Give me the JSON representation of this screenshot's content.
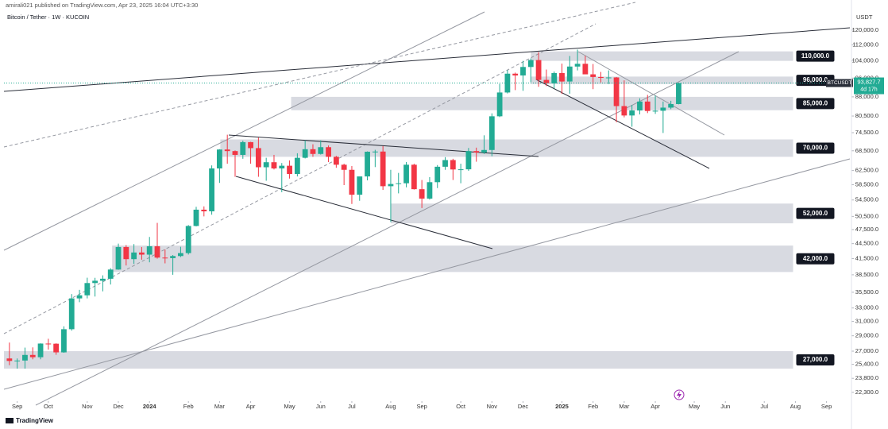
{
  "header": {
    "published": "amirali021 published on TradingView.com, Apr 23, 2025 16:04 UTC+3:30",
    "symbol": "Bitcoin / Tether · 1W · KUCOIN",
    "brand": "TradingView"
  },
  "chart_data": {
    "type": "candlestick",
    "log_scale": true,
    "y_unit": "USDT",
    "colors": {
      "up": "#22ab94",
      "down": "#f23645",
      "zone": "#d1d4dc"
    },
    "open": [
      26100,
      25800,
      25850,
      26530,
      26250,
      27970,
      27950,
      26850,
      29900,
      34500,
      35000,
      37050,
      37450,
      37800,
      39450,
      43800,
      41400,
      42700,
      42280,
      43950,
      41700,
      41600,
      42000,
      42580,
      48300,
      52100,
      51700,
      63100,
      68900,
      68400,
      67200,
      71300,
      69350,
      63450,
      64950,
      63100,
      63900,
      61500,
      66300,
      69000,
      67500,
      69650,
      66600,
      64200,
      62700,
      55850,
      60800,
      68200,
      68250,
      58100,
      58700,
      58900,
      64200,
      57300,
      54850,
      59200,
      63600,
      65600,
      62800,
      62850,
      68400,
      67950,
      68750,
      80400,
      89800,
      98000,
      97200,
      101100,
      104400,
      95200,
      93700,
      98300,
      94500,
      101300,
      102600,
      97700,
      96500,
      96100,
      96300,
      84300,
      80700,
      82600,
      86100,
      82400,
      82500,
      83700,
      85100
    ],
    "high": [
      28100,
      26100,
      27450,
      27480,
      28000,
      28600,
      28000,
      30300,
      35200,
      35900,
      37980,
      37960,
      38400,
      39700,
      44500,
      44200,
      44400,
      43800,
      45900,
      49000,
      43300,
      42200,
      43850,
      48500,
      52800,
      52900,
      64000,
      69000,
      73800,
      68600,
      71800,
      71400,
      72800,
      66300,
      67200,
      64700,
      65500,
      67700,
      71900,
      70600,
      71900,
      70200,
      66900,
      64500,
      63800,
      60000,
      68300,
      68800,
      70000,
      62700,
      61800,
      65000,
      64500,
      59800,
      60600,
      64100,
      66500,
      66000,
      64500,
      69400,
      69500,
      73600,
      81500,
      93500,
      99600,
      98500,
      104000,
      105200,
      108300,
      99900,
      99000,
      102700,
      106400,
      109600,
      106500,
      102500,
      98800,
      99500,
      96500,
      95000,
      84700,
      87400,
      88800,
      88500,
      86100,
      86400,
      94000
    ],
    "low": [
      25300,
      24900,
      24900,
      26000,
      26000,
      27200,
      26550,
      26800,
      29700,
      33900,
      34500,
      34800,
      35650,
      36800,
      39400,
      40200,
      40500,
      41300,
      40800,
      41500,
      40600,
      38500,
      41800,
      42300,
      48200,
      50500,
      50900,
      59000,
      64500,
      60700,
      66000,
      64500,
      60700,
      59600,
      62800,
      56500,
      60200,
      60800,
      66100,
      66600,
      67300,
      65000,
      63300,
      58400,
      53500,
      54300,
      59700,
      63500,
      57100,
      49200,
      56200,
      57800,
      57200,
      52500,
      54600,
      57600,
      62700,
      59800,
      58900,
      62400,
      65100,
      67500,
      66800,
      80100,
      89400,
      90800,
      90500,
      94200,
      92200,
      92500,
      91500,
      89200,
      89300,
      99500,
      97800,
      91200,
      94100,
      93400,
      78200,
      80000,
      76600,
      81100,
      81600,
      81300,
      74400,
      83100,
      85000
    ],
    "close": [
      25800,
      25850,
      26530,
      26250,
      27970,
      27950,
      26850,
      29900,
      34500,
      35000,
      37050,
      37450,
      37800,
      39450,
      43800,
      41400,
      42700,
      42280,
      43950,
      41700,
      41600,
      42000,
      42580,
      48300,
      52100,
      51700,
      63100,
      68900,
      68400,
      67200,
      71300,
      69350,
      63450,
      64950,
      63100,
      63900,
      61500,
      66300,
      69000,
      67500,
      69650,
      66600,
      64200,
      62700,
      55850,
      60800,
      68200,
      68250,
      58100,
      58700,
      58900,
      64200,
      57300,
      54850,
      59200,
      63600,
      65600,
      62800,
      62850,
      68400,
      67950,
      68750,
      80400,
      89800,
      98000,
      97200,
      101100,
      104400,
      95200,
      93700,
      98300,
      94500,
      101300,
      102600,
      97700,
      96500,
      96100,
      96300,
      84300,
      80700,
      82600,
      86100,
      82400,
      82500,
      83700,
      85100,
      93827.7
    ],
    "xlim": [
      -0.7,
      108
    ],
    "xticks": [
      {
        "value": 1,
        "label": "Sep"
      },
      {
        "value": 5,
        "label": "Oct"
      },
      {
        "value": 10,
        "label": "Nov"
      },
      {
        "value": 14,
        "label": "Dec"
      },
      {
        "value": 18,
        "label": "2024"
      },
      {
        "value": 23,
        "label": "Feb"
      },
      {
        "value": 27,
        "label": "Mar"
      },
      {
        "value": 31,
        "label": "Apr"
      },
      {
        "value": 36,
        "label": "May"
      },
      {
        "value": 40,
        "label": "Jun"
      },
      {
        "value": 44,
        "label": "Jul"
      },
      {
        "value": 49,
        "label": "Aug"
      },
      {
        "value": 53,
        "label": "Sep"
      },
      {
        "value": 58,
        "label": "Oct"
      },
      {
        "value": 62,
        "label": "Nov"
      },
      {
        "value": 66,
        "label": "Dec"
      },
      {
        "value": 71,
        "label": "2025"
      },
      {
        "value": 75,
        "label": "Feb"
      },
      {
        "value": 79,
        "label": "Mar"
      },
      {
        "value": 83,
        "label": "Apr"
      },
      {
        "value": 88,
        "label": "May"
      },
      {
        "value": 92,
        "label": "Jun"
      },
      {
        "value": 97,
        "label": "Jul"
      },
      {
        "value": 101,
        "label": "Aug"
      },
      {
        "value": 105,
        "label": "Sep"
      }
    ],
    "ylim": [
      21400,
      133000
    ],
    "yticks": [
      {
        "value": 120000,
        "label": "120,000.0"
      },
      {
        "value": 112000,
        "label": "112,000.0"
      },
      {
        "value": 104000,
        "label": "104,000.0"
      },
      {
        "value": 96000,
        "label": "96,000.0"
      },
      {
        "value": 88000,
        "label": "88,000.0"
      },
      {
        "value": 80500,
        "label": "80,500.0"
      },
      {
        "value": 74500,
        "label": "74,500.0"
      },
      {
        "value": 68500,
        "label": "68,500.0"
      },
      {
        "value": 62500,
        "label": "62,500.0"
      },
      {
        "value": 58500,
        "label": "58,500.0"
      },
      {
        "value": 54500,
        "label": "54,500.0"
      },
      {
        "value": 50500,
        "label": "50,500.0"
      },
      {
        "value": 47500,
        "label": "47,500.0"
      },
      {
        "value": 44500,
        "label": "44,500.0"
      },
      {
        "value": 41500,
        "label": "41,500.0"
      },
      {
        "value": 38500,
        "label": "38,500.0"
      },
      {
        "value": 35500,
        "label": "35,500.0"
      },
      {
        "value": 33000,
        "label": "33,000.0"
      },
      {
        "value": 31000,
        "label": "31,000.0"
      },
      {
        "value": 29000,
        "label": "29,000.0"
      },
      {
        "value": 27000,
        "label": "27,000.0"
      },
      {
        "value": 25400,
        "label": "25,400.0"
      },
      {
        "value": 23800,
        "label": "23,800.0"
      },
      {
        "value": 22300,
        "label": "22,300.0"
      }
    ],
    "last_price": {
      "value": 93827.7,
      "label": "93,827.7",
      "symbol": "BTCUSDT",
      "countdown": "4d 17h"
    },
    "zones": [
      {
        "label": "110,000.0",
        "low": 104000,
        "high": 108700,
        "start": 67,
        "end": 100.7
      },
      {
        "label": "96,000.0",
        "low": 93400,
        "high": 96700,
        "start": 67,
        "end": 100.7
      },
      {
        "label": "85,000.0",
        "low": 82700,
        "high": 88000,
        "start": 36.2,
        "end": 100.7
      },
      {
        "label": "70,000.0",
        "low": 66600,
        "high": 72200,
        "start": 27.1,
        "end": 100.7
      },
      {
        "label": "52,000.0",
        "low": 48900,
        "high": 53600,
        "start": 49,
        "end": 100.7
      },
      {
        "label": "42,000.0",
        "low": 39000,
        "high": 44100,
        "start": 13.2,
        "end": 100.7
      },
      {
        "label": "27,000.0",
        "low": 24900,
        "high": 27000,
        "start": -0.7,
        "end": 100.7
      }
    ]
  }
}
